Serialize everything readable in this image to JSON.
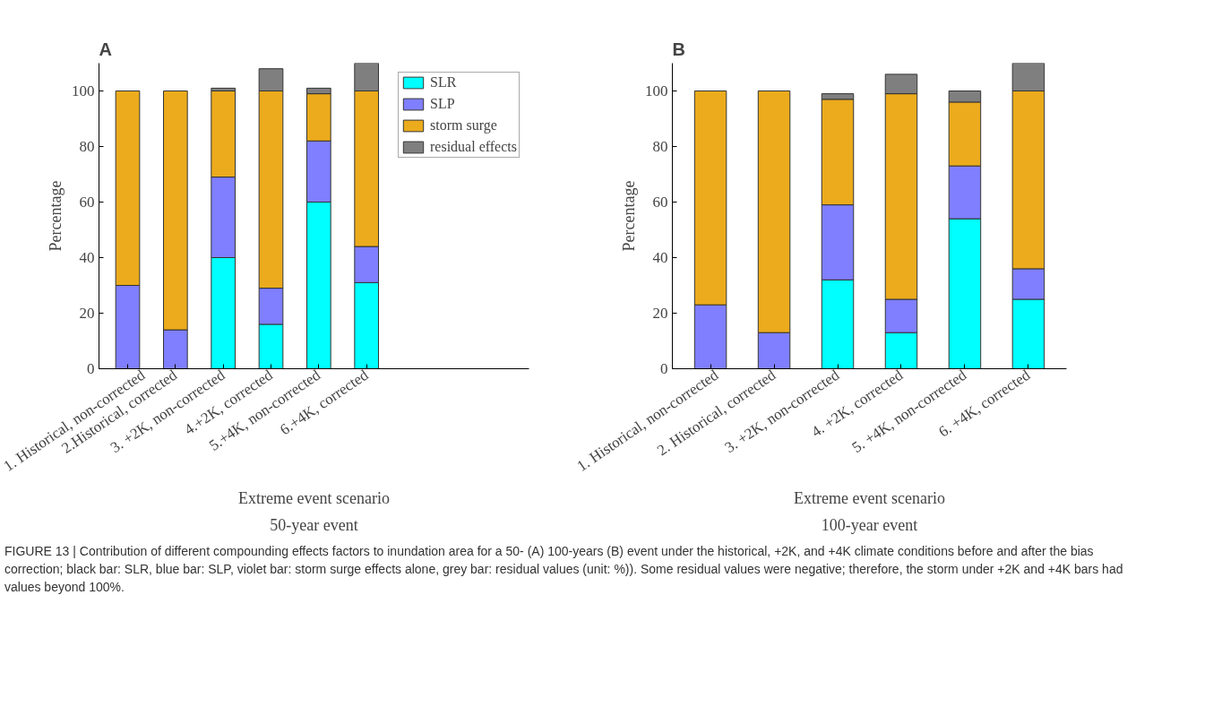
{
  "chart_data": [
    {
      "type": "bar",
      "title": "A",
      "subtitle": "50-year event",
      "xlabel": "Extreme event scenario",
      "ylabel": "Percentage",
      "stacked": true,
      "legend": "right",
      "grid": false,
      "categories": [
        "1. Historical, non-corrected",
        "2.Historical, corrected",
        "3. +2K, non-corrected",
        "4.+2K, corrected",
        "5.+4K, non-corrected",
        "6.+4K, corrected"
      ],
      "ylim": [
        0,
        110
      ],
      "yticks": [
        0,
        20,
        40,
        60,
        80,
        100
      ],
      "series": [
        {
          "name": "SLR",
          "color": "#00ffff",
          "values": [
            0,
            0,
            40,
            16,
            60,
            31
          ]
        },
        {
          "name": "SLP",
          "color": "#7f7fff",
          "values": [
            30,
            14,
            29,
            13,
            22,
            13
          ]
        },
        {
          "name": "storm surge",
          "color": "#ebab1c",
          "values": [
            70,
            86,
            31,
            71,
            17,
            56
          ]
        },
        {
          "name": "residual effects",
          "color": "#7f7f7f",
          "values": [
            0,
            0,
            1,
            8,
            2,
            10
          ]
        }
      ],
      "annotations": [
        "FIGURE 13 | Contribution of different compounding effects factors to inundation area for a 50- (A) 100-years (B) event under the historical, +2K, and +4K climate conditions before and after the bias correction; black bar: SLR, blue bar: SLP, violet bar: storm surge effects alone, grey bar: residual values (unit: %)). Some residual values were negative; therefore, the storm under +2K and +4K bars had values beyond 100%."
      ]
    },
    {
      "type": "bar",
      "title": "B",
      "subtitle": "100-year event",
      "xlabel": "Extreme event scenario",
      "ylabel": "Percentage",
      "stacked": true,
      "grid": false,
      "categories": [
        "1. Historical, non-corrected",
        "2. Historical, corrected",
        "3. +2K, non-corrected",
        "4. +2K, corrected",
        "5. +4K, non-corrected",
        "6. +4K, corrected"
      ],
      "ylim": [
        0,
        110
      ],
      "yticks": [
        0,
        20,
        40,
        60,
        80,
        100
      ],
      "series": [
        {
          "color": "#00ffff",
          "values": [
            0,
            0,
            32,
            13,
            54,
            25
          ]
        },
        {
          "color": "#7f7fff",
          "values": [
            23,
            13,
            27,
            12,
            19,
            11
          ]
        },
        {
          "color": "#ebab1c",
          "values": [
            77,
            87,
            38,
            74,
            23,
            64
          ]
        },
        {
          "color": "#7f7f7f",
          "values": [
            0,
            0,
            2,
            7,
            4,
            10
          ]
        }
      ]
    }
  ]
}
